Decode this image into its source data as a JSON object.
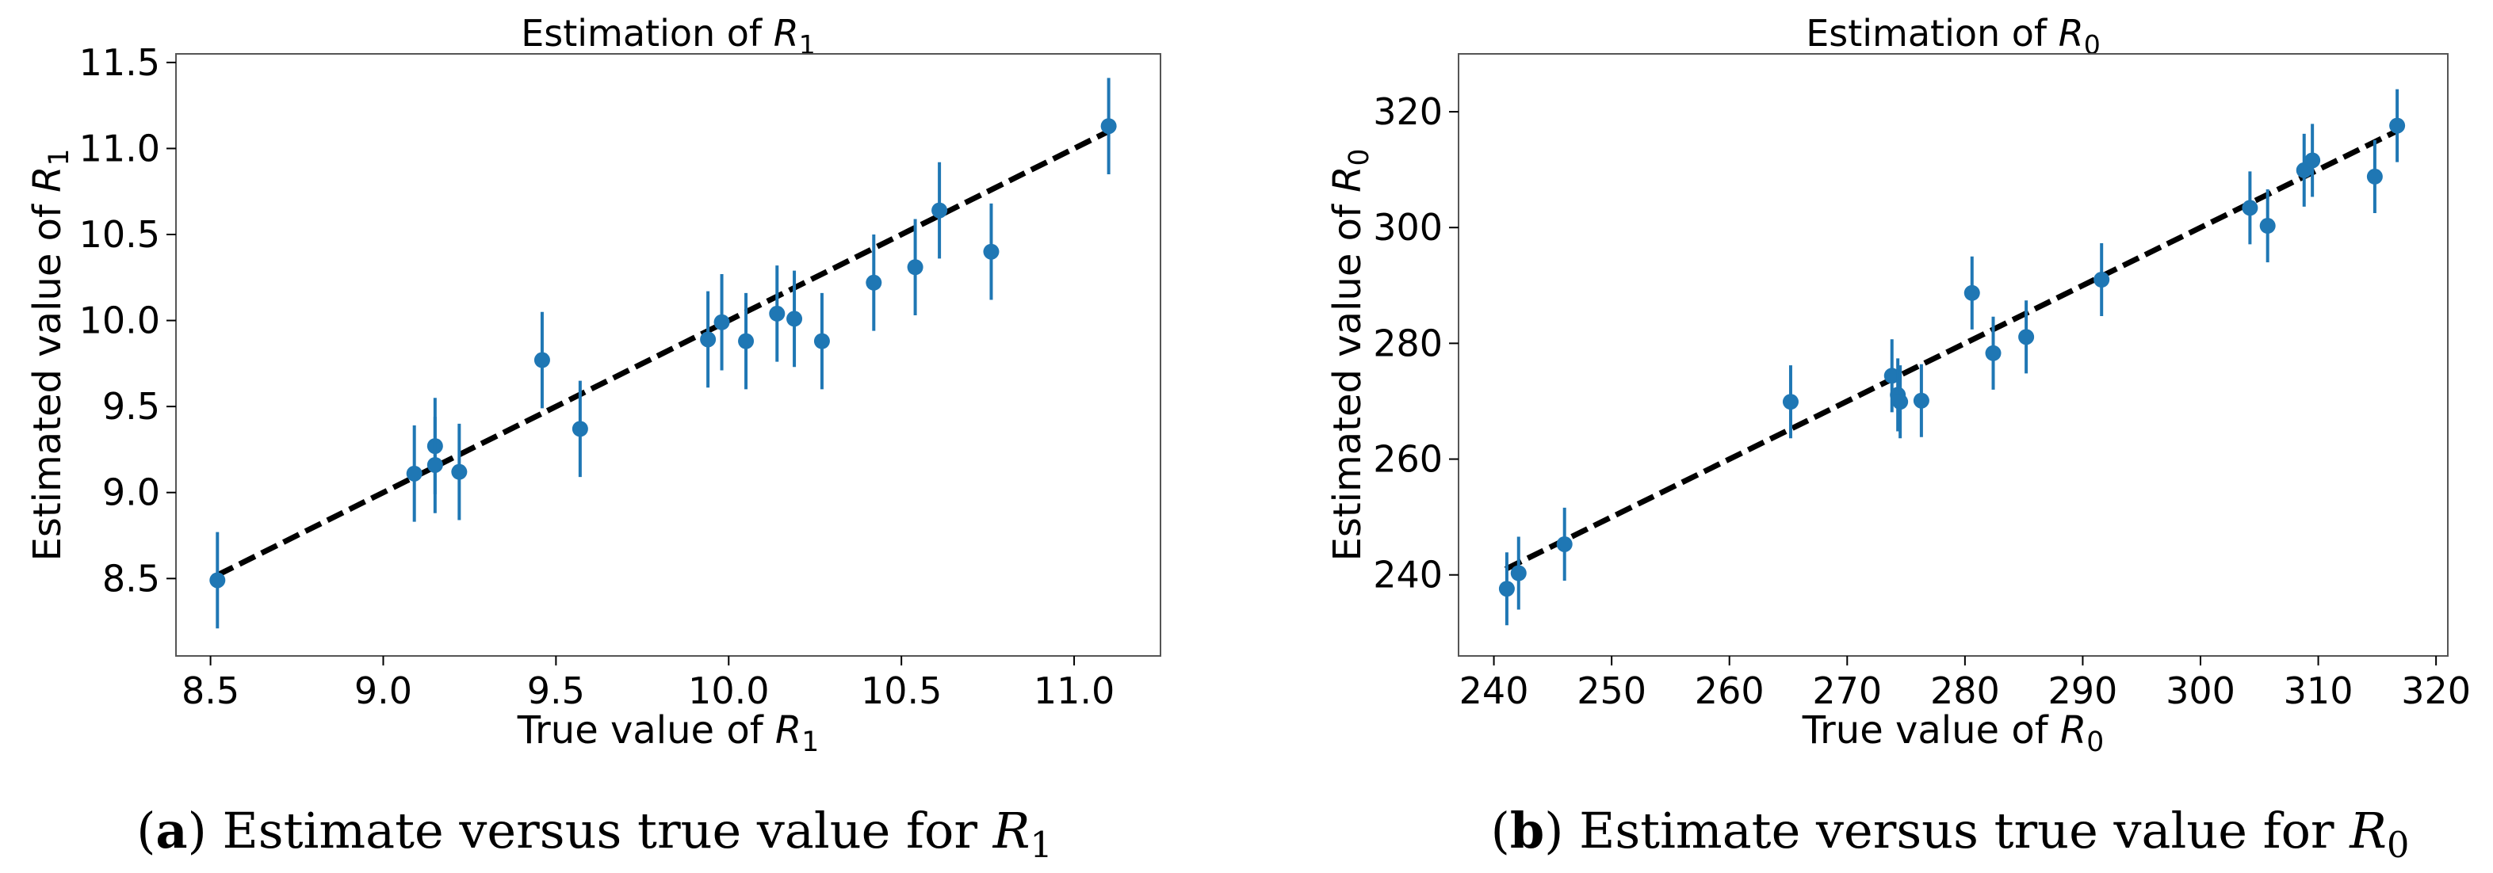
{
  "chart_data": [
    {
      "type": "scatter",
      "title_prefix": "Estimation of ",
      "xlabel_prefix": "True value of ",
      "ylabel_prefix": "Estimated value of ",
      "symbol": "R",
      "subscript": "1",
      "xlim": [
        8.4,
        11.25
      ],
      "ylim": [
        8.05,
        11.55
      ],
      "xticks": [
        8.5,
        9.0,
        9.5,
        10.0,
        10.5,
        11.0
      ],
      "xtick_labels": [
        "8.5",
        "9.0",
        "9.5",
        "10.0",
        "10.5",
        "11.0"
      ],
      "yticks": [
        8.5,
        9.0,
        9.5,
        10.0,
        10.5,
        11.0,
        11.5
      ],
      "ytick_labels": [
        "8.5",
        "9.0",
        "9.5",
        "10.0",
        "10.5",
        "11.0",
        "11.5"
      ],
      "line": [
        [
          8.52,
          8.52
        ],
        [
          11.1,
          11.1
        ]
      ],
      "points": [
        {
          "x": 8.52,
          "y": 8.49,
          "err": 0.28
        },
        {
          "x": 9.09,
          "y": 9.11,
          "err": 0.28
        },
        {
          "x": 9.15,
          "y": 9.27,
          "err": 0.28
        },
        {
          "x": 9.15,
          "y": 9.16,
          "err": 0.28
        },
        {
          "x": 9.22,
          "y": 9.12,
          "err": 0.28
        },
        {
          "x": 9.46,
          "y": 9.77,
          "err": 0.28
        },
        {
          "x": 9.57,
          "y": 9.37,
          "err": 0.28
        },
        {
          "x": 9.94,
          "y": 9.89,
          "err": 0.28
        },
        {
          "x": 9.98,
          "y": 9.99,
          "err": 0.28
        },
        {
          "x": 10.05,
          "y": 9.88,
          "err": 0.28
        },
        {
          "x": 10.14,
          "y": 10.04,
          "err": 0.28
        },
        {
          "x": 10.19,
          "y": 10.01,
          "err": 0.28
        },
        {
          "x": 10.27,
          "y": 9.88,
          "err": 0.28
        },
        {
          "x": 10.42,
          "y": 10.22,
          "err": 0.28
        },
        {
          "x": 10.54,
          "y": 10.31,
          "err": 0.28
        },
        {
          "x": 10.61,
          "y": 10.64,
          "err": 0.28
        },
        {
          "x": 10.76,
          "y": 10.4,
          "err": 0.28
        },
        {
          "x": 11.1,
          "y": 11.13,
          "err": 0.28
        }
      ]
    },
    {
      "type": "scatter",
      "title_prefix": "Estimation of ",
      "xlabel_prefix": "True value of ",
      "ylabel_prefix": "Estimated value of ",
      "symbol": "R",
      "subscript": "0",
      "xlim": [
        237,
        321
      ],
      "ylim": [
        226,
        330
      ],
      "xticks": [
        240,
        250,
        260,
        270,
        280,
        290,
        300,
        310,
        320
      ],
      "xtick_labels": [
        "240",
        "250",
        "260",
        "270",
        "280",
        "290",
        "300",
        "310",
        "320"
      ],
      "yticks": [
        240,
        260,
        280,
        300,
        320
      ],
      "ytick_labels": [
        "240",
        "260",
        "280",
        "300",
        "320"
      ],
      "line": [
        [
          241,
          241
        ],
        [
          317,
          317
        ]
      ],
      "points": [
        {
          "x": 241.1,
          "y": 237.6,
          "err": 6.3
        },
        {
          "x": 242.1,
          "y": 240.3,
          "err": 6.3
        },
        {
          "x": 246.0,
          "y": 245.3,
          "err": 6.3
        },
        {
          "x": 265.2,
          "y": 269.9,
          "err": 6.3
        },
        {
          "x": 273.8,
          "y": 274.4,
          "err": 6.3
        },
        {
          "x": 274.3,
          "y": 271.1,
          "err": 6.3
        },
        {
          "x": 274.5,
          "y": 269.9,
          "err": 6.3
        },
        {
          "x": 276.3,
          "y": 270.1,
          "err": 6.3
        },
        {
          "x": 280.6,
          "y": 288.7,
          "err": 6.3
        },
        {
          "x": 282.4,
          "y": 278.3,
          "err": 6.3
        },
        {
          "x": 285.2,
          "y": 281.1,
          "err": 6.3
        },
        {
          "x": 291.6,
          "y": 291.0,
          "err": 6.3
        },
        {
          "x": 304.2,
          "y": 303.4,
          "err": 6.3
        },
        {
          "x": 305.7,
          "y": 300.3,
          "err": 6.3
        },
        {
          "x": 308.8,
          "y": 309.9,
          "err": 6.3
        },
        {
          "x": 309.5,
          "y": 311.6,
          "err": 6.3
        },
        {
          "x": 314.8,
          "y": 308.8,
          "err": 6.3
        },
        {
          "x": 316.7,
          "y": 317.6,
          "err": 6.3
        }
      ]
    }
  ],
  "captions": [
    {
      "letter": "a",
      "text": " Estimate versus true value for ",
      "symbol": "R",
      "subscript": "1"
    },
    {
      "letter": "b",
      "text": " Estimate versus true value for ",
      "symbol": "R",
      "subscript": "0"
    }
  ]
}
